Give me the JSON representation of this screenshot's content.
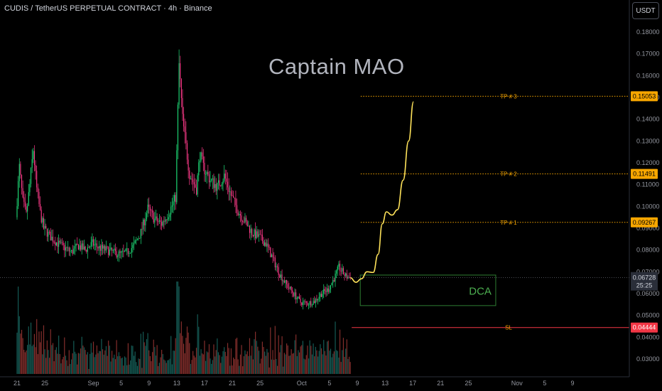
{
  "header": {
    "title": "CUDIS / TetherUS PERPETUAL CONTRACT · 4h · Binance",
    "currency": "USDT"
  },
  "watermark": "Captain MAO",
  "chart_data": {
    "type": "candlestick",
    "y_axis": {
      "ticks": [
        "0.18000",
        "0.17000",
        "0.16000",
        "0.15000",
        "0.14000",
        "0.13000",
        "0.12000",
        "0.11000",
        "0.10000",
        "0.09000",
        "0.08000",
        "0.07000",
        "0.06000",
        "0.05000",
        "0.04000",
        "0.03000"
      ],
      "ylim": [
        0.0265,
        0.186
      ]
    },
    "x_axis": {
      "ticks": [
        {
          "label": "21",
          "day": 0
        },
        {
          "label": "25",
          "day": 4
        },
        {
          "label": "Sep",
          "day": 11
        },
        {
          "label": "5",
          "day": 15
        },
        {
          "label": "9",
          "day": 19
        },
        {
          "label": "13",
          "day": 23
        },
        {
          "label": "17",
          "day": 27
        },
        {
          "label": "21",
          "day": 31
        },
        {
          "label": "25",
          "day": 35
        },
        {
          "label": "Oct",
          "day": 41
        },
        {
          "label": "5",
          "day": 45
        },
        {
          "label": "9",
          "day": 49
        },
        {
          "label": "13",
          "day": 53
        },
        {
          "label": "17",
          "day": 57
        },
        {
          "label": "21",
          "day": 61
        },
        {
          "label": "25",
          "day": 65
        },
        {
          "label": "Nov",
          "day": 72
        },
        {
          "label": "5",
          "day": 76
        },
        {
          "label": "9",
          "day": 80
        }
      ]
    },
    "price_path": [
      [
        0,
        0.095
      ],
      [
        0.5,
        0.118
      ],
      [
        1,
        0.102
      ],
      [
        1.5,
        0.096
      ],
      [
        2,
        0.11
      ],
      [
        2.5,
        0.126
      ],
      [
        3,
        0.108
      ],
      [
        3.5,
        0.097
      ],
      [
        4,
        0.09
      ],
      [
        5,
        0.086
      ],
      [
        6,
        0.083
      ],
      [
        7,
        0.081
      ],
      [
        8,
        0.079
      ],
      [
        9,
        0.082
      ],
      [
        10,
        0.08
      ],
      [
        11,
        0.083
      ],
      [
        12,
        0.081
      ],
      [
        13,
        0.08
      ],
      [
        14,
        0.079
      ],
      [
        15,
        0.078
      ],
      [
        16,
        0.079
      ],
      [
        17,
        0.082
      ],
      [
        18,
        0.088
      ],
      [
        19,
        0.099
      ],
      [
        20,
        0.094
      ],
      [
        21,
        0.092
      ],
      [
        22,
        0.097
      ],
      [
        23,
        0.104
      ],
      [
        23.5,
        0.165
      ],
      [
        24,
        0.14
      ],
      [
        25,
        0.115
      ],
      [
        26,
        0.108
      ],
      [
        26.5,
        0.124
      ],
      [
        27,
        0.118
      ],
      [
        28,
        0.112
      ],
      [
        29,
        0.109
      ],
      [
        30,
        0.114
      ],
      [
        31,
        0.105
      ],
      [
        32,
        0.098
      ],
      [
        33,
        0.093
      ],
      [
        34,
        0.088
      ],
      [
        35,
        0.086
      ],
      [
        36,
        0.083
      ],
      [
        37,
        0.076
      ],
      [
        38,
        0.069
      ],
      [
        39,
        0.064
      ],
      [
        40,
        0.06
      ],
      [
        41,
        0.056
      ],
      [
        42,
        0.0555
      ],
      [
        43,
        0.0565
      ],
      [
        44,
        0.06
      ],
      [
        45,
        0.062
      ],
      [
        46,
        0.068
      ],
      [
        46.5,
        0.072
      ],
      [
        47,
        0.07
      ],
      [
        47.5,
        0.068
      ],
      [
        48,
        0.0673
      ]
    ],
    "volume_max": 1.0,
    "levels": [
      {
        "name": "TP # 3",
        "value": 0.15053,
        "label": "0.15053",
        "color": "#f7a600"
      },
      {
        "name": "TP # 2",
        "value": 0.11491,
        "label": "0.11491",
        "color": "#f7a600"
      },
      {
        "name": "TP # 1",
        "value": 0.09267,
        "label": "0.09267",
        "color": "#f7a600"
      },
      {
        "name": "SL",
        "value": 0.04444,
        "label": "0.04444",
        "color": "#f23645"
      }
    ],
    "last_price": {
      "value": 0.06728,
      "label": "0.06728",
      "countdown": "25:25"
    },
    "dca_zone": {
      "label": "DCA",
      "top": 0.0685,
      "bottom": 0.0545,
      "day_start": 48.0,
      "day_end": 67.0
    },
    "projection": [
      [
        48,
        0.0673
      ],
      [
        48.8,
        0.0652
      ],
      [
        49.6,
        0.0668
      ],
      [
        50.4,
        0.07
      ],
      [
        51.3,
        0.0697
      ],
      [
        52,
        0.078
      ],
      [
        52.6,
        0.092
      ],
      [
        53.2,
        0.0975
      ],
      [
        54,
        0.096
      ],
      [
        54.8,
        0.0985
      ],
      [
        55.6,
        0.112
      ],
      [
        56.4,
        0.13
      ],
      [
        57.1,
        0.148
      ]
    ]
  }
}
